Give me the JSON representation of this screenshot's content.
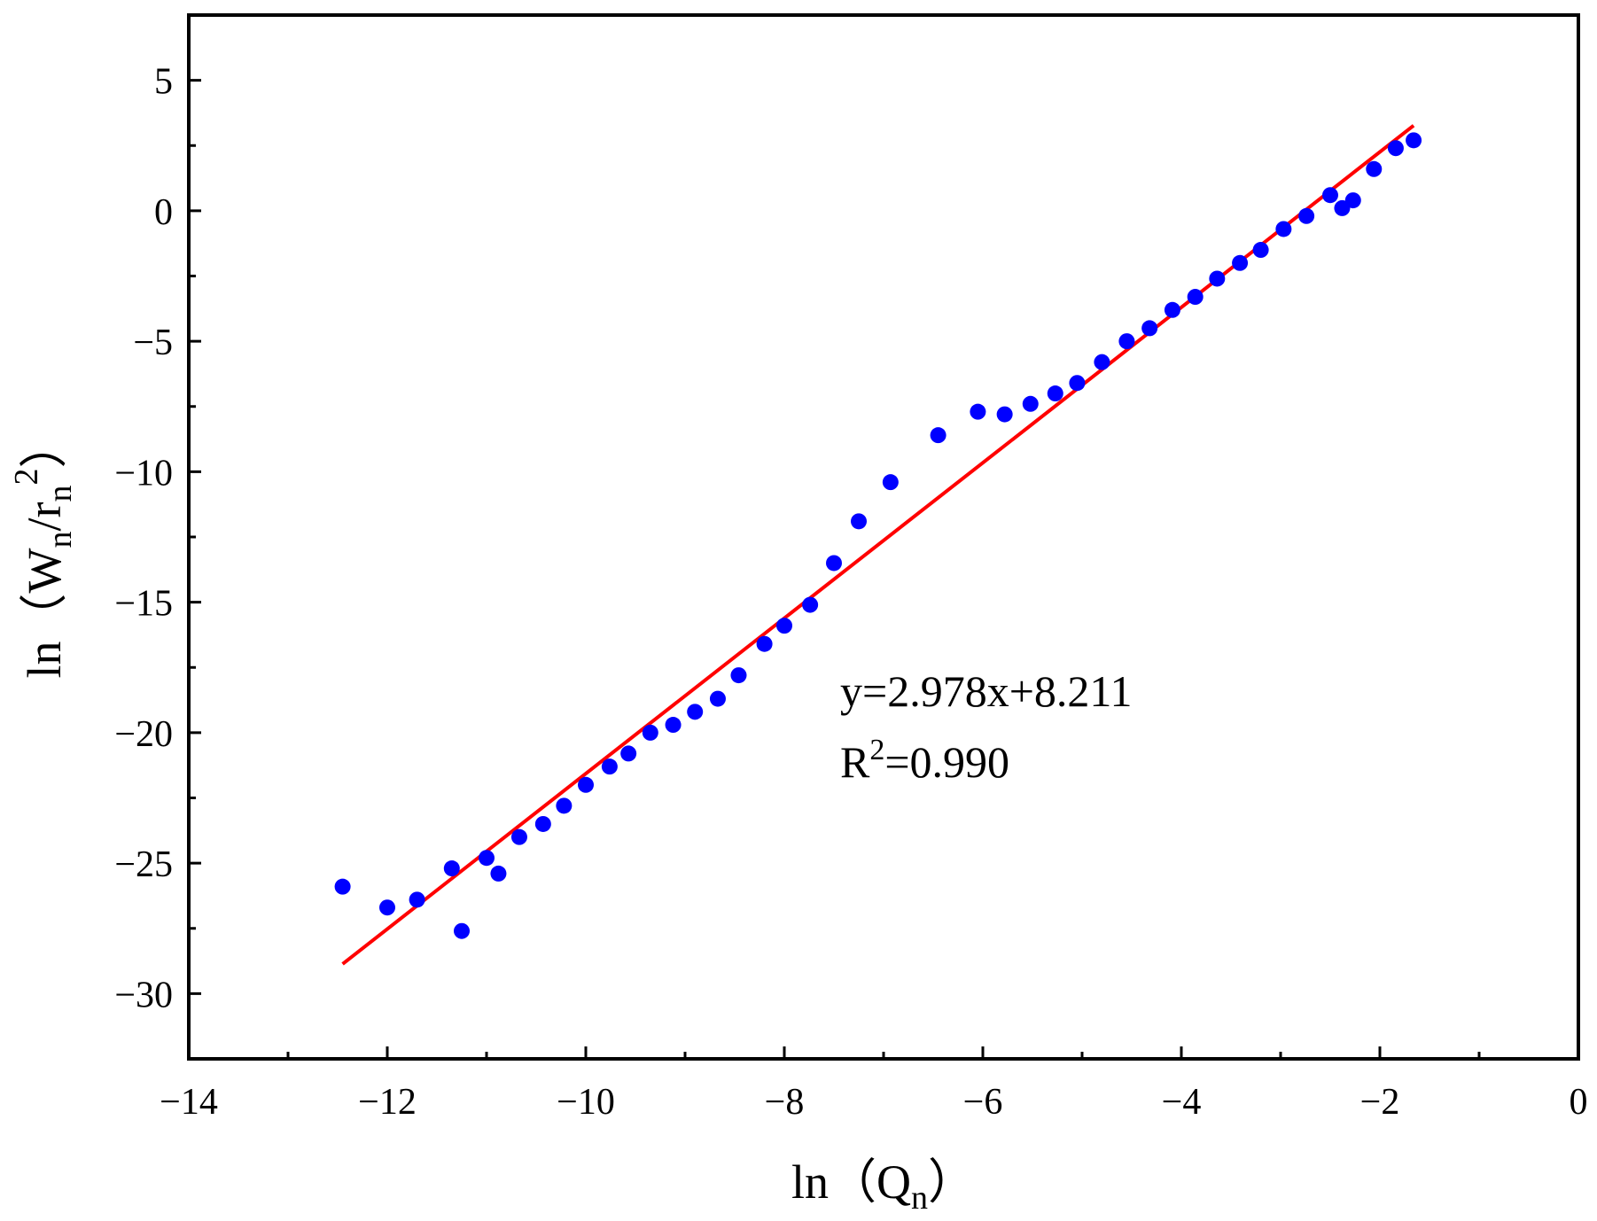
{
  "chart_data": {
    "type": "scatter",
    "xlabel": "ln（Qn）",
    "xlabel_parts": {
      "prefix": "ln（Q",
      "sub": "n",
      "suffix": "）"
    },
    "ylabel": "ln（Wn/rn²）",
    "ylabel_parts": {
      "prefix": "ln（W",
      "sub1": "n",
      "mid": "/r",
      "sub2": "n",
      "sup": "2",
      "suffix": "）"
    },
    "xlim": [
      -14,
      0
    ],
    "ylim": [
      -32.5,
      7.5
    ],
    "x_ticks": [
      -14,
      -12,
      -10,
      -8,
      -6,
      -4,
      -2,
      0
    ],
    "x_tick_labels": [
      "−14",
      "−12",
      "−10",
      "−8",
      "−6",
      "−4",
      "−2",
      "0"
    ],
    "y_ticks": [
      5,
      0,
      -5,
      -10,
      -15,
      -20,
      -25,
      -30
    ],
    "y_tick_labels": [
      "5",
      "0",
      "−5",
      "−10",
      "−15",
      "−20",
      "−25",
      "−30"
    ],
    "grid": false,
    "series": [
      {
        "name": "data",
        "color": "#0000ff",
        "marker": "circle",
        "points": [
          [
            -12.45,
            -25.9
          ],
          [
            -12.0,
            -26.7
          ],
          [
            -11.7,
            -26.4
          ],
          [
            -11.35,
            -25.2
          ],
          [
            -11.25,
            -27.6
          ],
          [
            -11.0,
            -24.8
          ],
          [
            -10.88,
            -25.4
          ],
          [
            -10.67,
            -24.0
          ],
          [
            -10.43,
            -23.5
          ],
          [
            -10.22,
            -22.8
          ],
          [
            -10.0,
            -22.0
          ],
          [
            -9.76,
            -21.3
          ],
          [
            -9.57,
            -20.8
          ],
          [
            -9.35,
            -20.0
          ],
          [
            -9.12,
            -19.7
          ],
          [
            -8.9,
            -19.2
          ],
          [
            -8.67,
            -18.7
          ],
          [
            -8.46,
            -17.8
          ],
          [
            -8.2,
            -16.6
          ],
          [
            -8.0,
            -15.9
          ],
          [
            -7.74,
            -15.1
          ],
          [
            -7.5,
            -13.5
          ],
          [
            -7.25,
            -11.9
          ],
          [
            -6.93,
            -10.4
          ],
          [
            -6.45,
            -8.6
          ],
          [
            -6.05,
            -7.7
          ],
          [
            -5.78,
            -7.8
          ],
          [
            -5.52,
            -7.4
          ],
          [
            -5.27,
            -7.0
          ],
          [
            -5.05,
            -6.6
          ],
          [
            -4.8,
            -5.8
          ],
          [
            -4.55,
            -5.0
          ],
          [
            -4.32,
            -4.5
          ],
          [
            -4.09,
            -3.8
          ],
          [
            -3.86,
            -3.3
          ],
          [
            -3.64,
            -2.6
          ],
          [
            -3.41,
            -2.0
          ],
          [
            -3.2,
            -1.5
          ],
          [
            -2.97,
            -0.7
          ],
          [
            -2.74,
            -0.2
          ],
          [
            -2.5,
            0.6
          ],
          [
            -2.38,
            0.1
          ],
          [
            -2.27,
            0.4
          ],
          [
            -2.06,
            1.6
          ],
          [
            -1.84,
            2.4
          ],
          [
            -1.66,
            2.7
          ]
        ]
      },
      {
        "name": "fit",
        "color": "#ff0000",
        "type": "line",
        "slope": 2.978,
        "intercept": 8.211,
        "x_range": [
          -12.45,
          -1.66
        ]
      }
    ],
    "annotations": {
      "equation": "y=2.978x+8.211",
      "r2_prefix": "R",
      "r2_sup": "2",
      "r2_suffix": "=0.990"
    }
  }
}
